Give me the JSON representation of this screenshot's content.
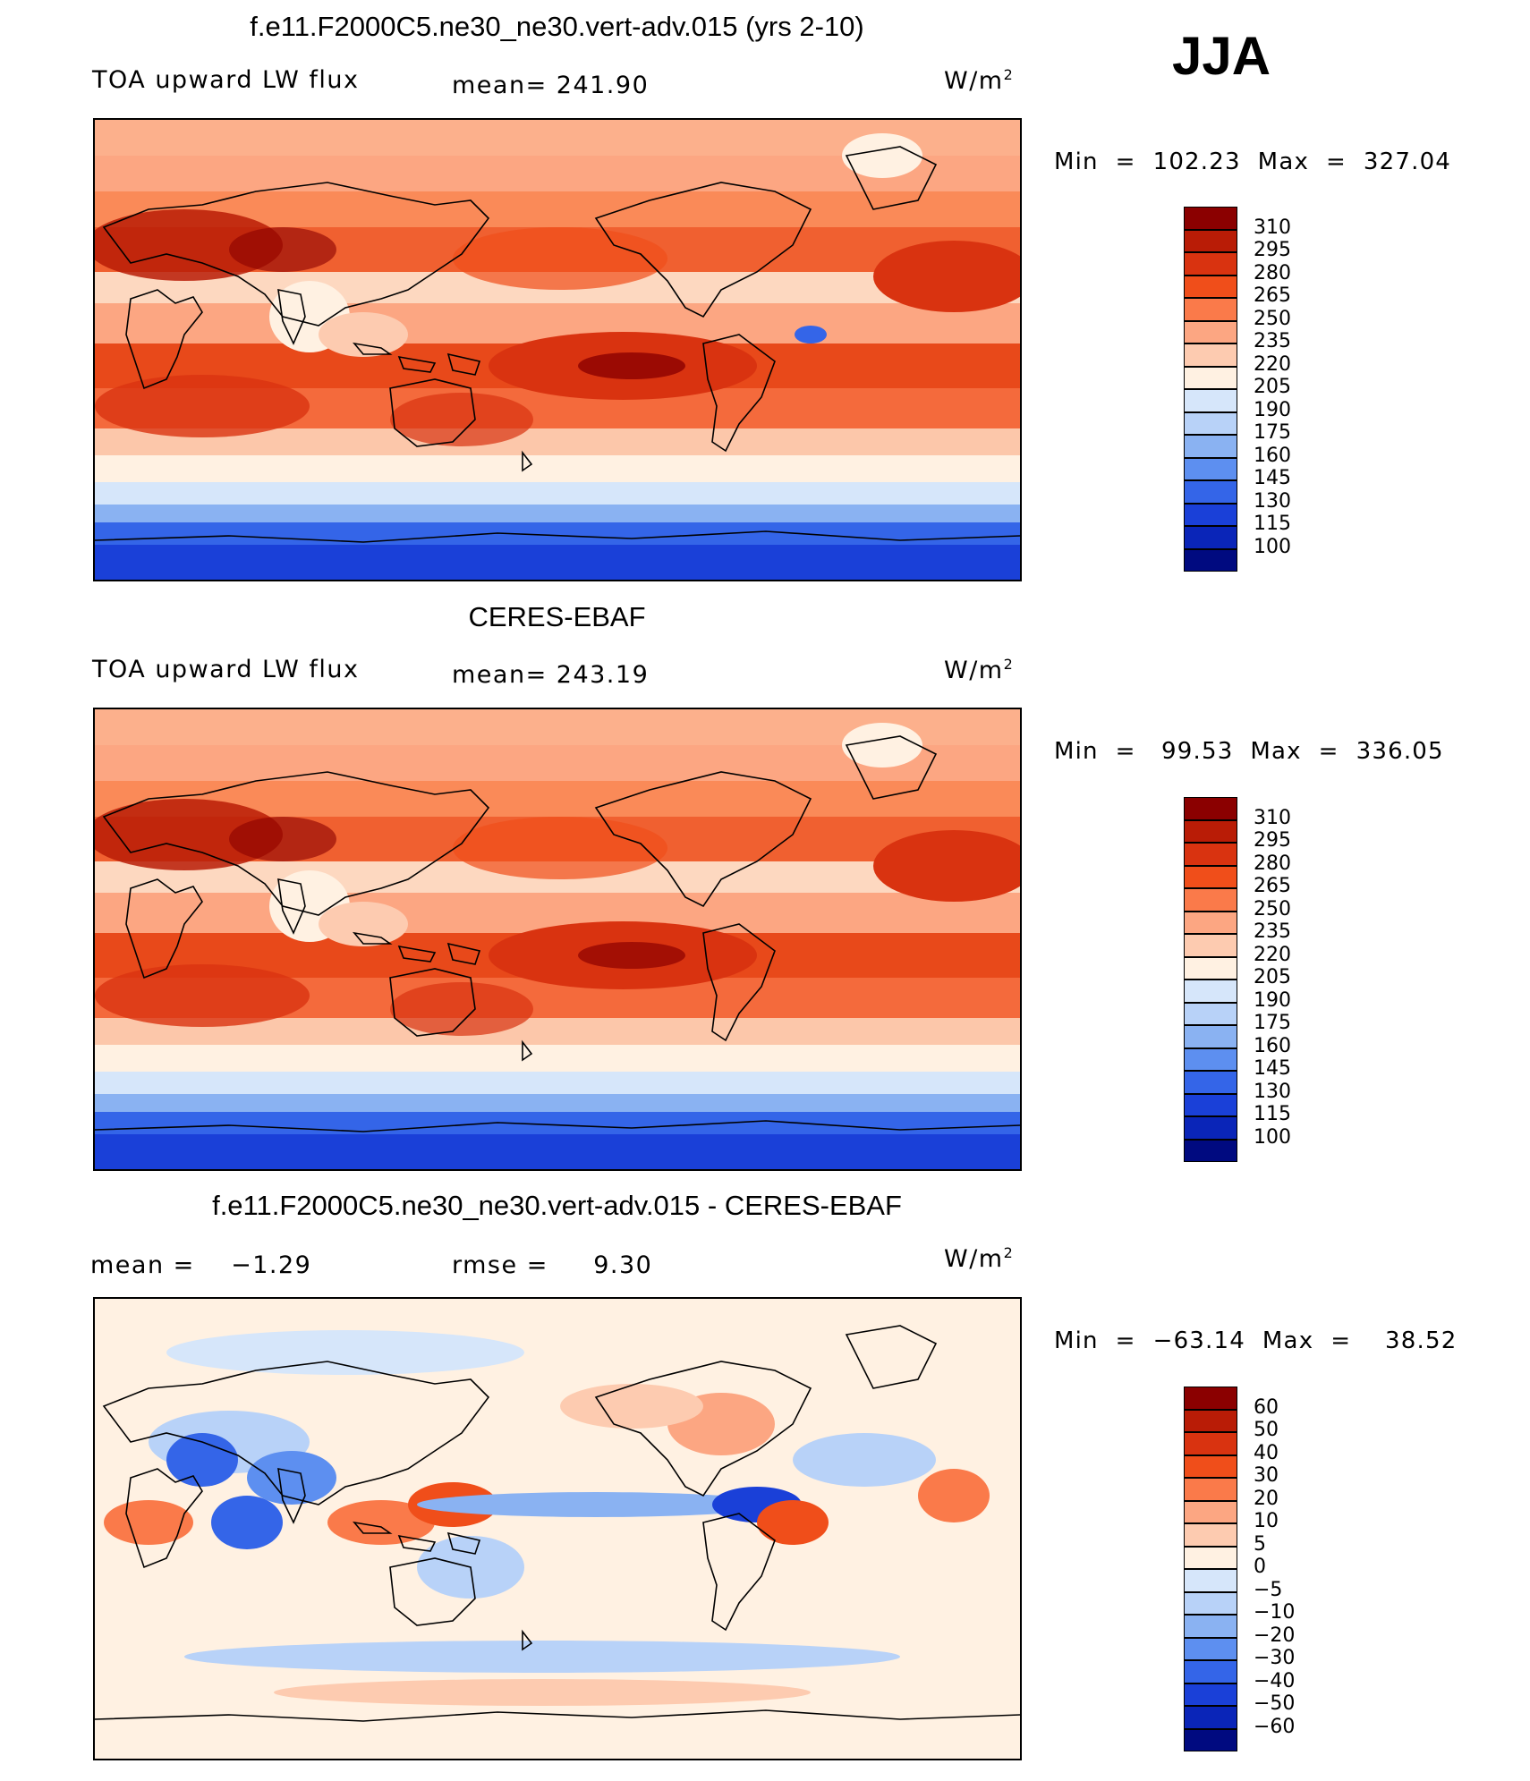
{
  "season": "JJA",
  "panels": [
    {
      "title": "f.e11.F2000C5.ne30_ne30.vert-adv.015 (yrs 2-10)",
      "left_label": "TOA upward LW flux",
      "center_label": "mean= 241.90",
      "units_base": "W/m",
      "units_exp": "2",
      "minmax": "Min  =  102.23  Max  =  327.04",
      "levels": [
        "310",
        "295",
        "280",
        "265",
        "250",
        "235",
        "220",
        "205",
        "190",
        "175",
        "160",
        "145",
        "130",
        "115",
        "100"
      ],
      "colors": [
        "#8b0000",
        "#b91c06",
        "#d93310",
        "#f04e1a",
        "#fa7a4a",
        "#fca682",
        "#fdcbb0",
        "#fff1e2",
        "#d6e6fa",
        "#b8d2f8",
        "#8ab2f2",
        "#5d8ff0",
        "#3465e8",
        "#1a40d8",
        "#0a25b8",
        "#000a80"
      ],
      "map_kind": "abs"
    },
    {
      "title": "CERES-EBAF",
      "left_label": "TOA upward LW flux",
      "center_label": "mean= 243.19",
      "units_base": "W/m",
      "units_exp": "2",
      "minmax": "Min  =   99.53  Max  =  336.05",
      "levels": [
        "310",
        "295",
        "280",
        "265",
        "250",
        "235",
        "220",
        "205",
        "190",
        "175",
        "160",
        "145",
        "130",
        "115",
        "100"
      ],
      "colors": [
        "#8b0000",
        "#b91c06",
        "#d93310",
        "#f04e1a",
        "#fa7a4a",
        "#fca682",
        "#fdcbb0",
        "#fff1e2",
        "#d6e6fa",
        "#b8d2f8",
        "#8ab2f2",
        "#5d8ff0",
        "#3465e8",
        "#1a40d8",
        "#0a25b8",
        "#000a80"
      ],
      "map_kind": "abs"
    },
    {
      "title": "f.e11.F2000C5.ne30_ne30.vert-adv.015 - CERES-EBAF",
      "left_label": "mean =    −1.29",
      "center_label": "rmse =     9.30",
      "units_base": "W/m",
      "units_exp": "2",
      "minmax": "Min  =  −63.14  Max  =    38.52",
      "levels": [
        "60",
        "50",
        "40",
        "30",
        "20",
        "10",
        "5",
        "0",
        "−5",
        "−10",
        "−20",
        "−30",
        "−40",
        "−50",
        "−60"
      ],
      "colors": [
        "#8b0000",
        "#b91c06",
        "#d93310",
        "#f04e1a",
        "#fa7a4a",
        "#fca682",
        "#fdcbb0",
        "#fff1e2",
        "#d6e6fa",
        "#b8d2f8",
        "#8ab2f2",
        "#5d8ff0",
        "#3465e8",
        "#1a40d8",
        "#0a25b8",
        "#000a80"
      ],
      "map_kind": "diff"
    }
  ]
}
